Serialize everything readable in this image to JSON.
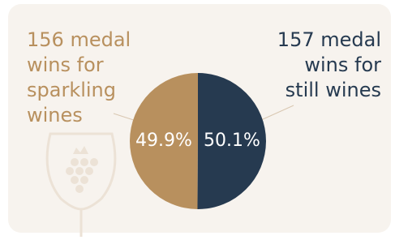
{
  "chart_data": {
    "type": "pie",
    "slices": [
      {
        "name_lines": [
          "156 medal",
          "wins for",
          "sparkling",
          "wines"
        ],
        "value": 49.9,
        "value_label": "49.9%",
        "color": "#b8905e"
      },
      {
        "name_lines": [
          "157 medal",
          "wins for",
          "still wines"
        ],
        "value": 50.1,
        "value_label": "50.1%",
        "color": "#263a50"
      }
    ]
  }
}
